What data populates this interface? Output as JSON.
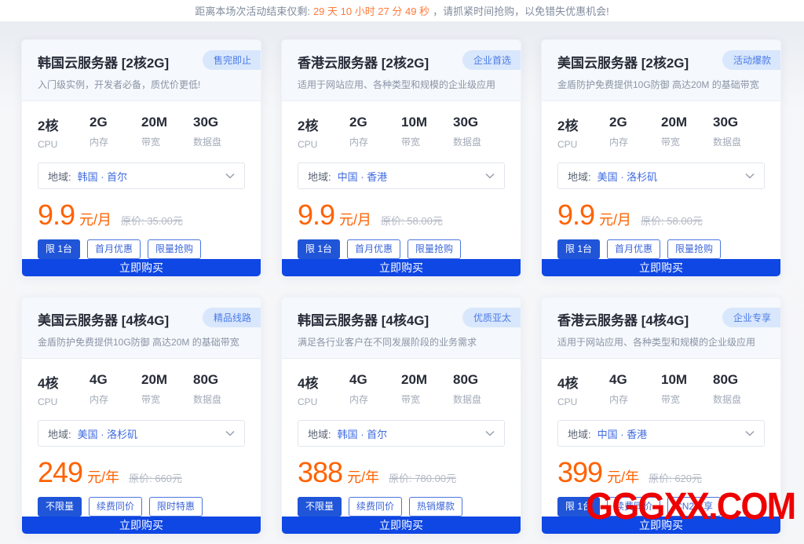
{
  "banner": {
    "prefix": "距离本场次活动结束仅剩:",
    "countdown": "29 天 10 小时 27 分 49 秒",
    "suffix": "，请抓紧时间抢购，以免错失优惠机会!"
  },
  "watermark": "GGGXX.COM",
  "colors": {
    "accent_blue": "#0f47e4",
    "tag_blue": "#2055d8",
    "badge_bg": "#d9e7fc",
    "badge_text": "#4c7ce8",
    "price_orange": "#ff6200",
    "countdown_orange": "#ff7a3c",
    "watermark_red": "#ee0000"
  },
  "cards": [
    {
      "title": "韩国云服务器 [2核2G]",
      "badge": "售完即止",
      "description": "入门级实例，开发者必备，质优价更低!",
      "specs": [
        {
          "value": "2核",
          "label": "CPU"
        },
        {
          "value": "2G",
          "label": "内存"
        },
        {
          "value": "20M",
          "label": "带宽"
        },
        {
          "value": "30G",
          "label": "数据盘"
        }
      ],
      "region_label": "地域:",
      "region": "韩国 · 首尔",
      "price": "9.9",
      "price_unit": "元/月",
      "original_price": "原价: 35.00元",
      "tags": [
        {
          "text": "限 1台",
          "filled": true
        },
        {
          "text": "首月优惠",
          "filled": false
        },
        {
          "text": "限量抢购",
          "filled": false
        }
      ],
      "buy_label": "立即购买"
    },
    {
      "title": "香港云服务器 [2核2G]",
      "badge": "企业首选",
      "description": "适用于网站应用、各种类型和规模的企业级应用",
      "specs": [
        {
          "value": "2核",
          "label": "CPU"
        },
        {
          "value": "2G",
          "label": "内存"
        },
        {
          "value": "10M",
          "label": "带宽"
        },
        {
          "value": "30G",
          "label": "数据盘"
        }
      ],
      "region_label": "地域:",
      "region": "中国 · 香港",
      "price": "9.9",
      "price_unit": "元/月",
      "original_price": "原价: 58.00元",
      "tags": [
        {
          "text": "限 1台",
          "filled": true
        },
        {
          "text": "首月优惠",
          "filled": false
        },
        {
          "text": "限量抢购",
          "filled": false
        }
      ],
      "buy_label": "立即购买"
    },
    {
      "title": "美国云服务器 [2核2G]",
      "badge": "活动爆款",
      "description": "金盾防护免费提供10G防御 高达20M 的基础带宽",
      "specs": [
        {
          "value": "2核",
          "label": "CPU"
        },
        {
          "value": "2G",
          "label": "内存"
        },
        {
          "value": "20M",
          "label": "带宽"
        },
        {
          "value": "30G",
          "label": "数据盘"
        }
      ],
      "region_label": "地域:",
      "region": "美国 · 洛杉矶",
      "price": "9.9",
      "price_unit": "元/月",
      "original_price": "原价: 58.00元",
      "tags": [
        {
          "text": "限 1台",
          "filled": true
        },
        {
          "text": "首月优惠",
          "filled": false
        },
        {
          "text": "限量抢购",
          "filled": false
        }
      ],
      "buy_label": "立即购买"
    },
    {
      "title": "美国云服务器 [4核4G]",
      "badge": "精品线路",
      "description": "金盾防护免费提供10G防御 高达20M 的基础带宽",
      "specs": [
        {
          "value": "4核",
          "label": "CPU"
        },
        {
          "value": "4G",
          "label": "内存"
        },
        {
          "value": "20M",
          "label": "带宽"
        },
        {
          "value": "80G",
          "label": "数据盘"
        }
      ],
      "region_label": "地域:",
      "region": "美国 · 洛杉矶",
      "price": "249",
      "price_unit": "元/年",
      "original_price": "原价: 660元",
      "tags": [
        {
          "text": "不限量",
          "filled": true
        },
        {
          "text": "续费同价",
          "filled": false
        },
        {
          "text": "限时特惠",
          "filled": false
        }
      ],
      "buy_label": "立即购买"
    },
    {
      "title": "韩国云服务器 [4核4G]",
      "badge": "优质亚太",
      "description": "满足各行业客户在不同发展阶段的业务需求",
      "specs": [
        {
          "value": "4核",
          "label": "CPU"
        },
        {
          "value": "4G",
          "label": "内存"
        },
        {
          "value": "20M",
          "label": "带宽"
        },
        {
          "value": "80G",
          "label": "数据盘"
        }
      ],
      "region_label": "地域:",
      "region": "韩国 · 首尔",
      "price": "388",
      "price_unit": "元/年",
      "original_price": "原价: 780.00元",
      "tags": [
        {
          "text": "不限量",
          "filled": true
        },
        {
          "text": "续费同价",
          "filled": false
        },
        {
          "text": "热销爆款",
          "filled": false
        }
      ],
      "buy_label": "立即购买"
    },
    {
      "title": "香港云服务器 [4核4G]",
      "badge": "企业专享",
      "description": "适用于网站应用、各种类型和规模的企业级应用",
      "specs": [
        {
          "value": "4核",
          "label": "CPU"
        },
        {
          "value": "4G",
          "label": "内存"
        },
        {
          "value": "10M",
          "label": "带宽"
        },
        {
          "value": "80G",
          "label": "数据盘"
        }
      ],
      "region_label": "地域:",
      "region": "中国 · 香港",
      "price": "399",
      "price_unit": "元/年",
      "original_price": "原价: 620元",
      "tags": [
        {
          "text": "限 1台",
          "filled": true
        },
        {
          "text": "续费同价",
          "filled": false
        },
        {
          "text": "CN2专享",
          "filled": false
        }
      ],
      "buy_label": "立即购买"
    }
  ]
}
